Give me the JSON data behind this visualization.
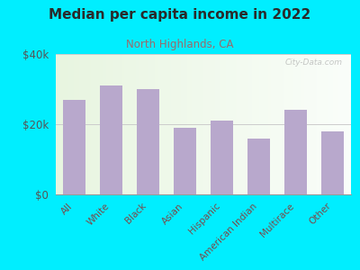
{
  "title": "Median per capita income in 2022",
  "subtitle": "North Highlands, CA",
  "categories": [
    "All",
    "White",
    "Black",
    "Asian",
    "Hispanic",
    "American Indian",
    "Multirace",
    "Other"
  ],
  "values": [
    27000,
    31000,
    30000,
    19000,
    21000,
    16000,
    24000,
    18000
  ],
  "bar_color": "#b8a8cc",
  "background_outer": "#00eeff",
  "title_color": "#2a2a2a",
  "subtitle_color": "#9b6b6b",
  "ytick_label_color": "#555555",
  "xtick_label_color": "#7a4a4a",
  "ylim": [
    0,
    40000
  ],
  "yticks": [
    0,
    20000,
    40000
  ],
  "ytick_labels": [
    "$0",
    "$20k",
    "$40k"
  ],
  "grid_color": "#cccccc",
  "watermark": "City-Data.com"
}
